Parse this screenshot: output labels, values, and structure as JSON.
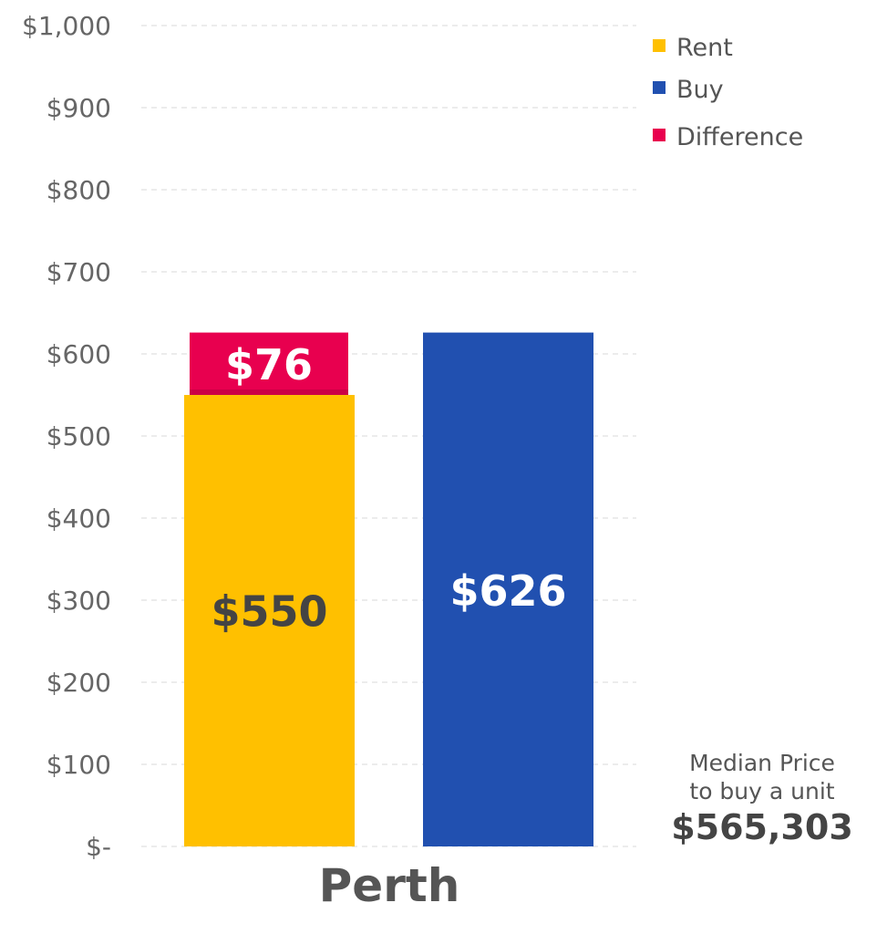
{
  "chart_data": {
    "type": "bar",
    "title": "",
    "xlabel": "",
    "ylabel": "",
    "ylim": [
      0,
      1000
    ],
    "grid": true,
    "legend_position": "top-right",
    "yticks": [
      0,
      100,
      200,
      300,
      400,
      500,
      600,
      700,
      800,
      900,
      1000
    ],
    "ytick_labels": [
      "$-",
      "$100",
      "$200",
      "$300",
      "$400",
      "$500",
      "$600",
      "$700",
      "$800",
      "$900",
      "$1,000"
    ],
    "categories": [
      "Perth"
    ],
    "series": [
      {
        "name": "Rent",
        "color": "#FFC000",
        "values": [
          550
        ],
        "labels": [
          "$550"
        ],
        "stack": "rent",
        "label_color": "#444444"
      },
      {
        "name": "Difference",
        "color": "#E8004F",
        "values": [
          76
        ],
        "labels": [
          "$76"
        ],
        "stack": "rent",
        "label_color": "#ffffff"
      },
      {
        "name": "Buy",
        "color": "#2150B0",
        "values": [
          626
        ],
        "labels": [
          "$626"
        ],
        "stack": "buy",
        "label_color": "#ffffff"
      }
    ],
    "legend": [
      {
        "name": "Rent",
        "color": "#FFC000"
      },
      {
        "name": "Buy",
        "color": "#2150B0"
      },
      {
        "name": "Difference",
        "color": "#E8004F"
      }
    ],
    "annotation": {
      "line1": "Median Price",
      "line2": "to buy a unit",
      "value": "$565,303"
    }
  }
}
